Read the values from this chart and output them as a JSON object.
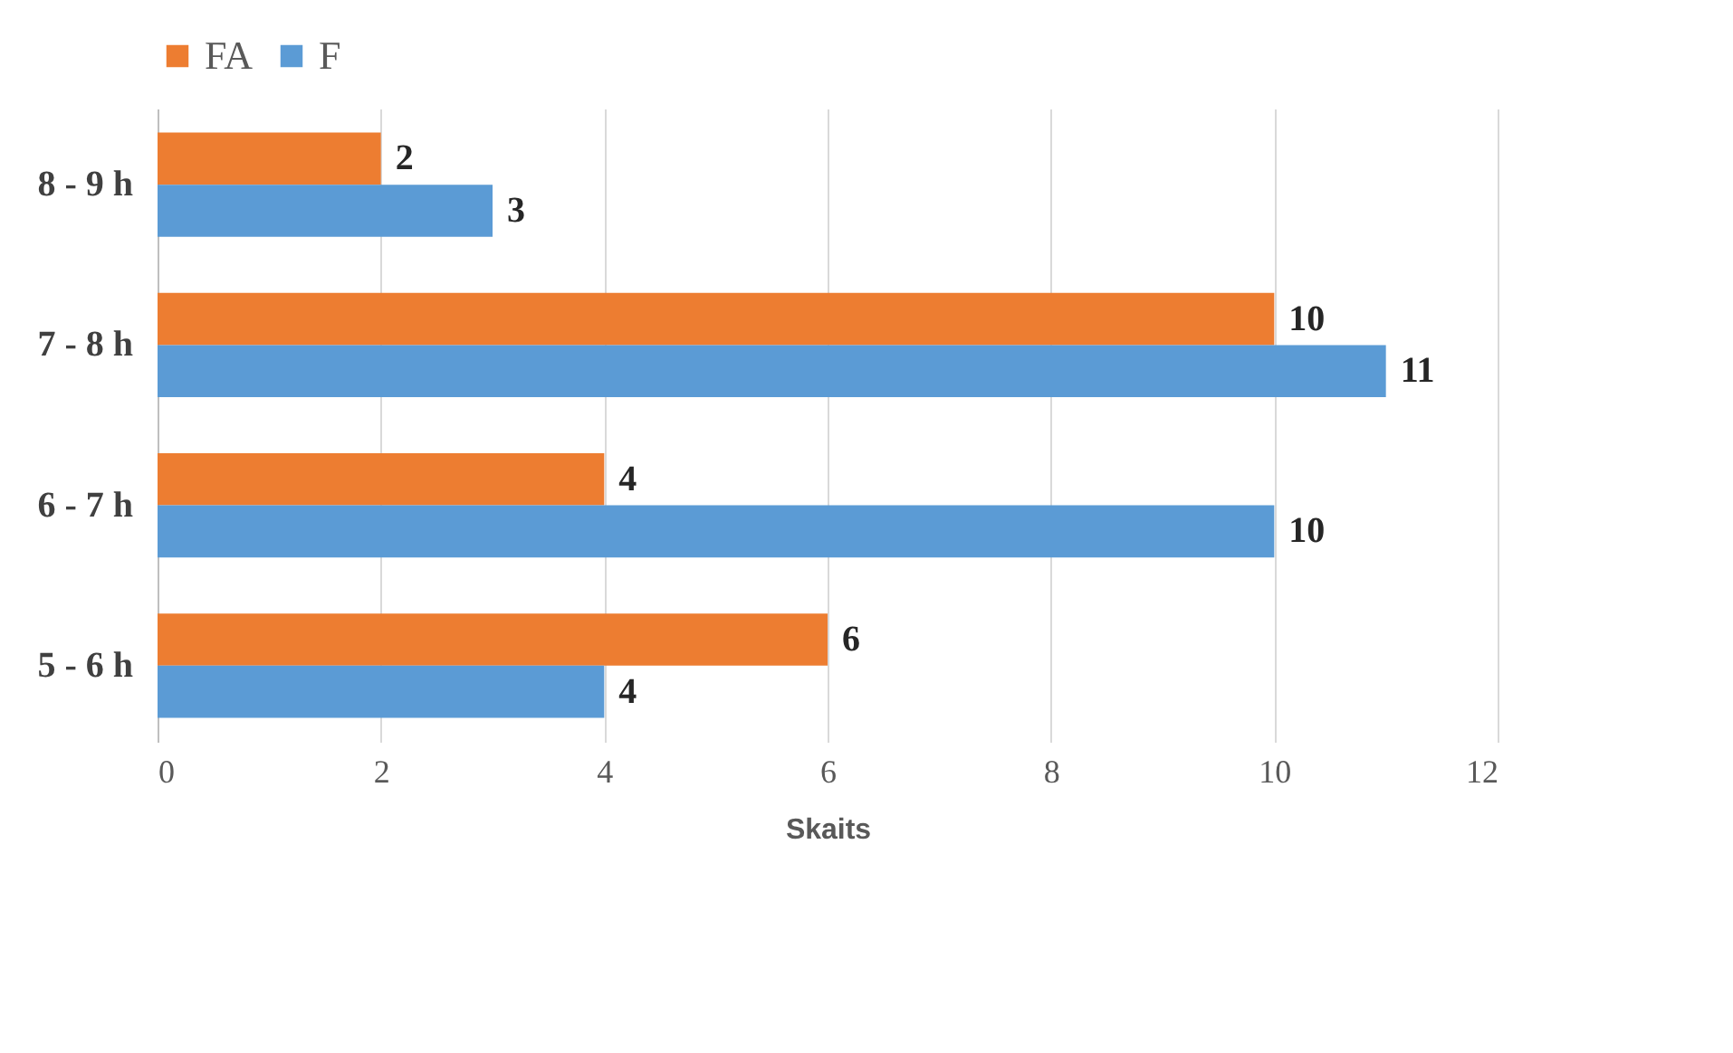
{
  "chart_data": {
    "type": "bar",
    "orientation": "horizontal",
    "xlabel": "Skaits",
    "categories": [
      "8 - 9 h",
      "7 - 8 h",
      "6 - 7 h",
      "5 - 6 h"
    ],
    "series": [
      {
        "name": "FA",
        "color": "#ed7d31",
        "values": [
          2,
          10,
          4,
          6
        ]
      },
      {
        "name": "F",
        "color": "#5b9bd5",
        "values": [
          3,
          11,
          10,
          4
        ]
      }
    ],
    "xlim": [
      0,
      12
    ],
    "xticks": [
      0,
      2,
      4,
      6,
      8,
      10,
      12
    ],
    "grid": "x",
    "legend": "top",
    "data_labels": true
  }
}
